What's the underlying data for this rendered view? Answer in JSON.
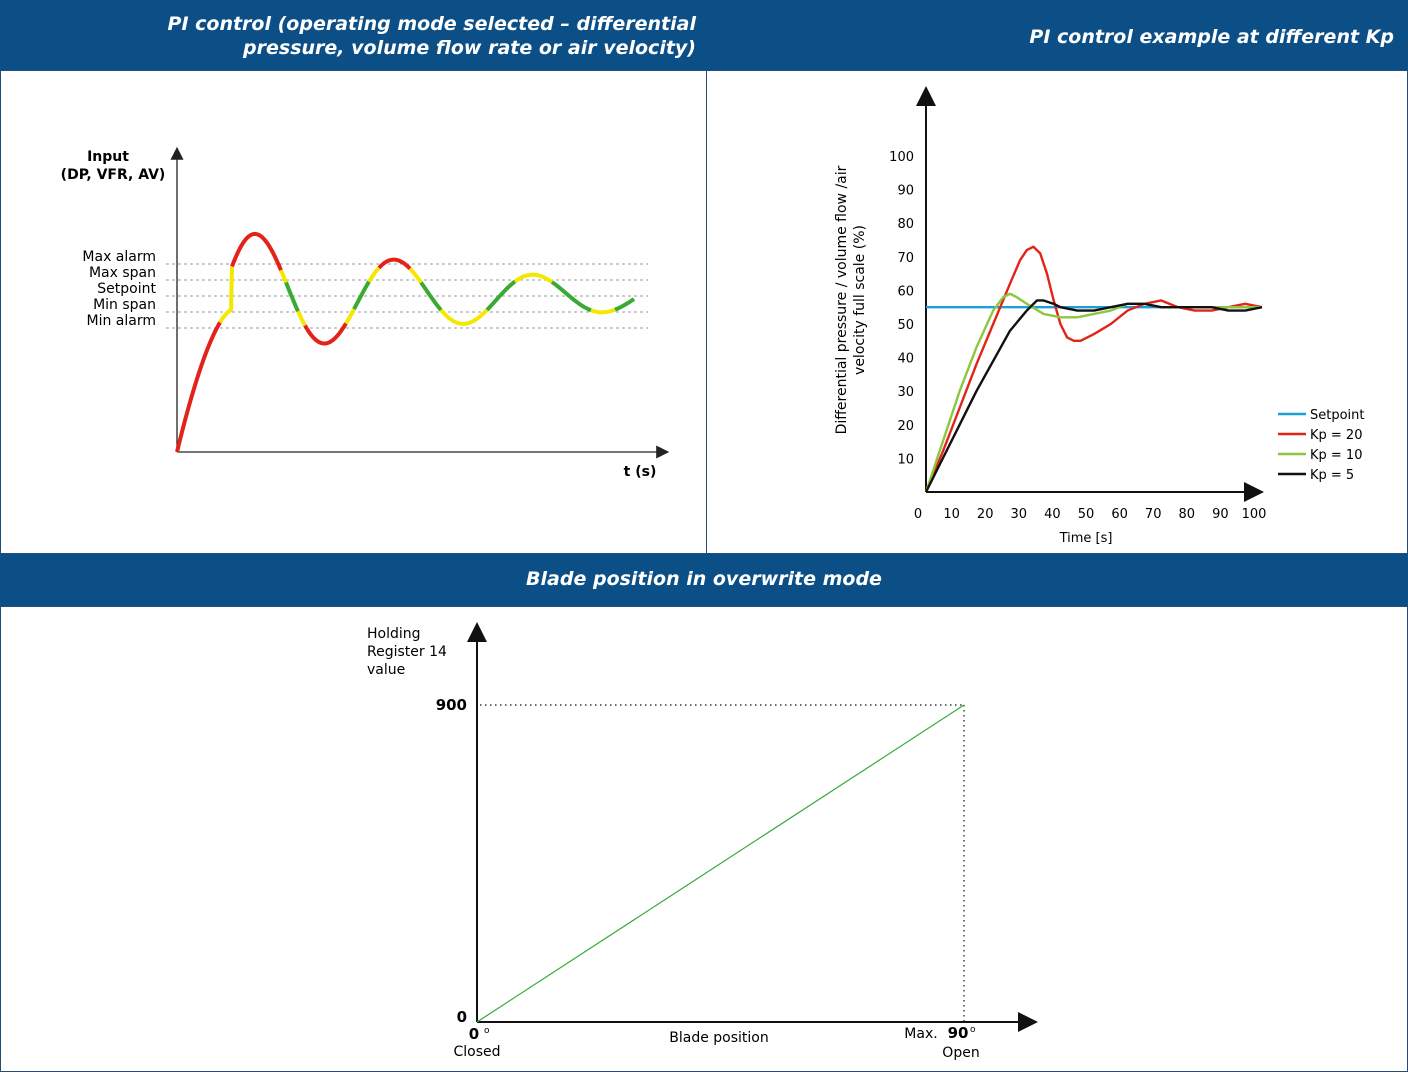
{
  "headers": {
    "left_line1": "PI control (operating mode selected – differential",
    "left_line2": "pressure, volume flow rate or air velocity)",
    "right": "PI control example at different Kp",
    "bottom": "Blade position in overwrite mode"
  },
  "colors": {
    "header_bg": "#0b4f86",
    "red": "#e2231a",
    "green": "#3aaa35",
    "yellow": "#f5e800",
    "setpoint_blue": "#1a9fd9",
    "kp10_green": "#8dc63f",
    "black": "#111111"
  },
  "chart_data": [
    {
      "type": "line",
      "title": "",
      "ylabel_line1": "Input",
      "ylabel_line2": "(DP, VFR, AV)",
      "xlabel": "t (s)",
      "levels": [
        {
          "name": "Max alarm",
          "value": 4
        },
        {
          "name": "Max span",
          "value": 3
        },
        {
          "name": "Setpoint",
          "value": 2
        },
        {
          "name": "Min span",
          "value": 1
        },
        {
          "name": "Min alarm",
          "value": 0
        }
      ],
      "color_legend": {
        "inside_span": "green",
        "between_span_and_alarm": "yellow",
        "beyond_alarm": "red"
      }
    },
    {
      "type": "line",
      "title": "",
      "xlabel": "Time [s]",
      "ylabel_line1": "Differential pressure / volume flow /air",
      "ylabel_line2": "velocity full scale (%)",
      "xlim": [
        0,
        100
      ],
      "ylim": [
        0,
        100
      ],
      "xticks": [
        0,
        10,
        20,
        30,
        40,
        50,
        60,
        70,
        80,
        90,
        100
      ],
      "yticks": [
        10,
        20,
        30,
        40,
        50,
        60,
        70,
        80,
        90,
        100
      ],
      "legend_position": "right",
      "series": [
        {
          "name": "Setpoint",
          "color": "#1a9fd9",
          "x": [
            0,
            100
          ],
          "y": [
            55,
            55
          ]
        },
        {
          "name": "Kp = 20",
          "color": "#e2231a",
          "x": [
            0,
            5,
            10,
            15,
            20,
            25,
            28,
            30,
            32,
            34,
            36,
            38,
            40,
            42,
            44,
            46,
            48,
            50,
            55,
            60,
            65,
            70,
            75,
            80,
            85,
            90,
            95,
            100
          ],
          "y": [
            0,
            12,
            25,
            38,
            50,
            62,
            69,
            72,
            73,
            71,
            65,
            57,
            50,
            46,
            45,
            45,
            46,
            47,
            50,
            54,
            56,
            57,
            55,
            54,
            54,
            55,
            56,
            55
          ]
        },
        {
          "name": "Kp = 10",
          "color": "#8dc63f",
          "x": [
            0,
            5,
            10,
            15,
            20,
            23,
            25,
            27,
            30,
            35,
            40,
            45,
            50,
            55,
            60,
            65,
            70,
            75,
            80,
            85,
            90,
            95,
            100
          ],
          "y": [
            0,
            15,
            30,
            43,
            54,
            58,
            59,
            58,
            56,
            53,
            52,
            52,
            53,
            54,
            56,
            56,
            55,
            55,
            55,
            55,
            55,
            55,
            55
          ]
        },
        {
          "name": "Kp = 5",
          "color": "#111111",
          "x": [
            0,
            5,
            10,
            15,
            20,
            25,
            30,
            33,
            35,
            38,
            40,
            45,
            50,
            55,
            60,
            65,
            70,
            75,
            80,
            85,
            90,
            95,
            100
          ],
          "y": [
            0,
            10,
            20,
            30,
            39,
            48,
            54,
            57,
            57,
            56,
            55,
            54,
            54,
            55,
            56,
            56,
            55,
            55,
            55,
            55,
            54,
            54,
            55
          ]
        }
      ]
    },
    {
      "type": "line",
      "title": "",
      "ylabel_line1": "Holding",
      "ylabel_line2": "Register 14",
      "ylabel_line3": "value",
      "xlabel": "Blade position",
      "y_ticks": [
        "0",
        "900"
      ],
      "x_left_value": "0",
      "x_left_unit": "o",
      "x_left_caption": "Closed",
      "x_right_prefix": "Max.",
      "x_right_value": "90",
      "x_right_unit": "o",
      "x_right_caption": "Open",
      "series": [
        {
          "name": "",
          "color": "#3aaa35",
          "x": [
            0,
            90
          ],
          "y": [
            0,
            900
          ]
        }
      ]
    }
  ]
}
